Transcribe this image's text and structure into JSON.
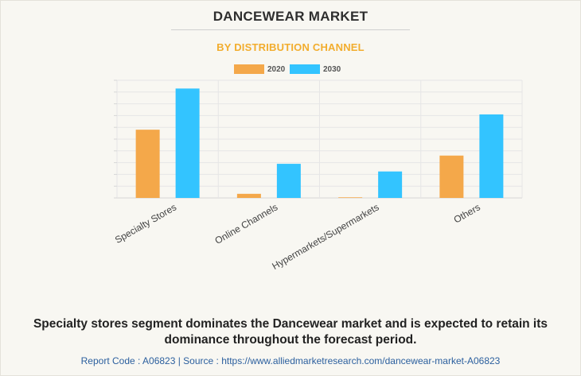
{
  "colors": {
    "series_2020": "#f4a84a",
    "series_2030": "#33c4ff",
    "title": "#2e2e2e",
    "subtitle": "#f2ad2e",
    "footer_link": "#2b5f9e"
  },
  "chart_data": {
    "type": "bar",
    "title": "DANCEWEAR MARKET",
    "subtitle": "BY DISTRIBUTION CHANNEL",
    "categories": [
      "Specialty Stores",
      "Online Channels",
      "Hypermarkets/Supermarkets",
      "Others"
    ],
    "series": [
      {
        "name": "2020",
        "values": [
          5.8,
          0.35,
          0.05,
          3.6
        ]
      },
      {
        "name": "2030",
        "values": [
          9.3,
          2.9,
          2.25,
          7.1
        ]
      }
    ],
    "ylim": [
      0,
      10
    ],
    "grid": true,
    "legend_position": "top-center",
    "xlabel": "",
    "ylabel": ""
  },
  "footer": {
    "summary": "Specialty stores segment dominates the Dancewear market and is expected to retain its dominance throughout the forecast period.",
    "source": "Report Code : A06823  |  Source : https://www.alliedmarketresearch.com/dancewear-market-A06823"
  }
}
